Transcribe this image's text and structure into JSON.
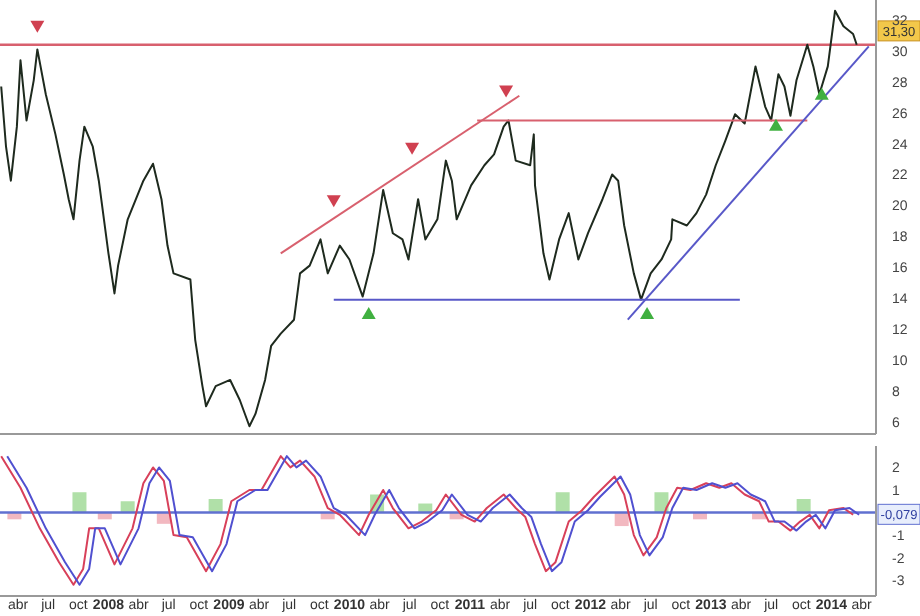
{
  "chart_data": [
    {
      "type": "line",
      "xlim": [
        2007.1,
        2014.37
      ],
      "ylim": [
        5.2,
        33.3
      ],
      "yticks": [
        6,
        8,
        10,
        12,
        14,
        16,
        18,
        20,
        22,
        24,
        26,
        28,
        30,
        32
      ],
      "tick_labels": "y",
      "series": [
        {
          "color": "#1e2a1e",
          "x": [
            2007.11,
            2007.15,
            2007.19,
            2007.24,
            2007.27,
            2007.32,
            2007.38,
            2007.41,
            2007.48,
            2007.56,
            2007.63,
            2007.67,
            2007.71,
            2007.76,
            2007.8,
            2007.87,
            2007.92,
            2008.0,
            2008.05,
            2008.08,
            2008.16,
            2008.29,
            2008.37,
            2008.44,
            2008.49,
            2008.54,
            2008.68,
            2008.72,
            2008.78,
            2008.81,
            2008.89,
            2009.01,
            2009.09,
            2009.17,
            2009.22,
            2009.3,
            2009.35,
            2009.43,
            2009.54,
            2009.59,
            2009.67,
            2009.76,
            2009.82,
            2009.92,
            2010.0,
            2010.11,
            2010.2,
            2010.28,
            2010.36,
            2010.44,
            2010.49,
            2010.57,
            2010.63,
            2010.73,
            2010.8,
            2010.85,
            2010.89,
            2011.01,
            2011.12,
            2011.2,
            2011.28,
            2011.32,
            2011.38,
            2011.5,
            2011.53,
            2011.54,
            2011.61,
            2011.66,
            2011.74,
            2011.82,
            2011.9,
            2011.98,
            2012.1,
            2012.18,
            2012.23,
            2012.28,
            2012.36,
            2012.42,
            2012.5,
            2012.59,
            2012.67,
            2012.68,
            2012.8,
            2012.88,
            2012.96,
            2013.04,
            2013.12,
            2013.2,
            2013.28,
            2013.37,
            2013.45,
            2013.5,
            2013.56,
            2013.61,
            2013.66,
            2013.71,
            2013.8,
            2013.85,
            2013.9,
            2013.97,
            2014.03,
            2014.1,
            2014.18,
            2014.21
          ],
          "values": [
            27.7,
            23.8,
            21.6,
            25.1,
            29.4,
            25.5,
            28.1,
            30.1,
            27.2,
            24.6,
            22.0,
            20.4,
            19.1,
            22.9,
            25.1,
            23.8,
            21.6,
            16.9,
            14.3,
            16.1,
            19.1,
            21.6,
            22.7,
            20.4,
            17.4,
            15.6,
            15.2,
            11.3,
            8.3,
            7.0,
            8.3,
            8.7,
            7.4,
            5.7,
            6.5,
            8.7,
            10.9,
            11.7,
            12.6,
            15.6,
            16.1,
            17.8,
            15.6,
            17.4,
            16.5,
            14.1,
            16.9,
            21.0,
            18.2,
            17.8,
            16.5,
            20.4,
            17.8,
            19.1,
            22.9,
            21.6,
            19.1,
            21.3,
            22.6,
            23.3,
            25.1,
            25.5,
            22.9,
            22.6,
            24.6,
            21.3,
            16.9,
            15.2,
            17.8,
            19.5,
            16.5,
            18.2,
            20.4,
            22.0,
            21.6,
            18.7,
            15.6,
            13.9,
            15.6,
            16.5,
            17.8,
            19.1,
            18.7,
            19.5,
            20.7,
            22.6,
            24.2,
            25.9,
            25.3,
            29.0,
            26.4,
            25.5,
            28.5,
            27.7,
            25.8,
            28.1,
            30.4,
            29.0,
            27.2,
            29.0,
            32.6,
            31.6,
            31.1,
            30.4
          ]
        },
        {
          "color": "#d8606e",
          "x": [
            2009.43,
            2011.41
          ],
          "values": [
            16.9,
            27.1
          ]
        },
        {
          "color": "#d8606e",
          "x": [
            2011.06,
            2013.8
          ],
          "values": [
            25.5,
            25.5
          ]
        },
        {
          "color": "#5858c8",
          "x": [
            2009.87,
            2013.24
          ],
          "values": [
            13.9,
            13.9
          ]
        },
        {
          "color": "#5858c8",
          "x": [
            2012.31,
            2014.31
          ],
          "values": [
            12.6,
            30.3
          ]
        },
        {
          "type": "scatter",
          "marker": "triangle_down",
          "color": "#d04050",
          "x": [
            2007.41,
            2009.87,
            2010.52,
            2011.3
          ],
          "values": [
            31.7,
            20.4,
            23.8,
            27.5
          ]
        },
        {
          "type": "scatter",
          "marker": "triangle",
          "color": "#40b040",
          "x": [
            2010.16,
            2012.47,
            2013.54,
            2013.92
          ],
          "values": [
            12.9,
            12.9,
            25.1,
            27.1
          ]
        }
      ],
      "ref_lines": [
        {
          "axis": "y",
          "value": 30.4,
          "color": "#d8606e"
        }
      ],
      "annotations": [
        {
          "text": "31,30",
          "y": 31.3
        }
      ]
    },
    {
      "type": "line",
      "xlim": [
        2007.1,
        2014.37
      ],
      "ylim": [
        -3.7,
        2.95
      ],
      "yticks": [
        -3,
        -2,
        -1,
        1,
        2
      ],
      "xticks": [
        {
          "value": 2007.25,
          "label": "abr"
        },
        {
          "value": 2007.5,
          "label": "jul"
        },
        {
          "value": 2007.75,
          "label": "oct"
        },
        2008,
        {
          "value": 2008.25,
          "label": "abr"
        },
        {
          "value": 2008.5,
          "label": "jul"
        },
        {
          "value": 2008.75,
          "label": "oct"
        },
        2009,
        {
          "value": 2009.25,
          "label": "abr"
        },
        {
          "value": 2009.5,
          "label": "jul"
        },
        {
          "value": 2009.75,
          "label": "oct"
        },
        2010,
        {
          "value": 2010.25,
          "label": "abr"
        },
        {
          "value": 2010.5,
          "label": "jul"
        },
        {
          "value": 2010.75,
          "label": "oct"
        },
        2011,
        {
          "value": 2011.25,
          "label": "abr"
        },
        {
          "value": 2011.5,
          "label": "jul"
        },
        {
          "value": 2011.75,
          "label": "oct"
        },
        2012,
        {
          "value": 2012.25,
          "label": "abr"
        },
        {
          "value": 2012.5,
          "label": "jul"
        },
        {
          "value": 2012.75,
          "label": "oct"
        },
        2013,
        {
          "value": 2013.25,
          "label": "abr"
        },
        {
          "value": 2013.5,
          "label": "jul"
        },
        {
          "value": 2013.75,
          "label": "oct"
        },
        2014,
        {
          "value": 2014.25,
          "label": "abr"
        }
      ],
      "series": [
        {
          "type": "bar",
          "x": [
            2007.22,
            2007.76,
            2007.97,
            2008.16,
            2008.46,
            2008.89,
            2009.82,
            2010.23,
            2010.63,
            2010.89,
            2011.77,
            2012.26,
            2012.59,
            2012.91,
            2013.4,
            2013.77
          ],
          "values": [
            -0.3,
            0.9,
            -0.3,
            0.5,
            -0.5,
            0.6,
            -0.3,
            0.8,
            0.4,
            -0.3,
            0.9,
            -0.6,
            0.9,
            -0.3,
            -0.3,
            0.6
          ],
          "colors": [
            "#f2b8c0",
            "#b0e0a8",
            "#f2b8c0",
            "#b0e0a8",
            "#f2b8c0",
            "#b0e0a8",
            "#f2b8c0",
            "#b0e0a8",
            "#b0e0a8",
            "#f2b8c0",
            "#b0e0a8",
            "#f2b8c0",
            "#b0e0a8",
            "#f2b8c0",
            "#f2b8c0",
            "#b0e0a8"
          ]
        },
        {
          "color": "#d8405a",
          "x": [
            2007.11,
            2007.27,
            2007.43,
            2007.59,
            2007.71,
            2007.79,
            2007.84,
            2007.92,
            2008.05,
            2008.2,
            2008.29,
            2008.37,
            2008.46,
            2008.54,
            2008.65,
            2008.81,
            2008.93,
            2009.02,
            2009.17,
            2009.27,
            2009.43,
            2009.51,
            2009.59,
            2009.71,
            2009.82,
            2009.92,
            2010.08,
            2010.16,
            2010.28,
            2010.36,
            2010.49,
            2010.6,
            2010.72,
            2010.8,
            2010.93,
            2011.04,
            2011.14,
            2011.28,
            2011.38,
            2011.46,
            2011.54,
            2011.63,
            2011.71,
            2011.82,
            2011.93,
            2012.03,
            2012.2,
            2012.28,
            2012.36,
            2012.44,
            2012.55,
            2012.63,
            2012.72,
            2012.83,
            2012.96,
            2013.07,
            2013.17,
            2013.28,
            2013.4,
            2013.48,
            2013.56,
            2013.66,
            2013.74,
            2013.82,
            2013.9,
            2013.98,
            2014.1,
            2014.18
          ],
          "values": [
            2.5,
            1.1,
            -0.7,
            -2.2,
            -3.2,
            -2.5,
            -0.7,
            -0.7,
            -2.3,
            -0.7,
            1.3,
            2.0,
            1.4,
            -1.0,
            -1.1,
            -2.6,
            -1.4,
            0.5,
            1.0,
            1.0,
            2.5,
            2.0,
            2.3,
            1.6,
            0.2,
            -0.1,
            -1.0,
            -0.1,
            1.0,
            0.2,
            -0.7,
            -0.4,
            0.1,
            0.8,
            -0.1,
            -0.4,
            0.2,
            0.8,
            0.2,
            -0.2,
            -1.4,
            -2.6,
            -2.2,
            -0.4,
            0.1,
            0.7,
            1.6,
            0.8,
            -1.0,
            -1.9,
            -1.1,
            0.2,
            1.1,
            1.0,
            1.3,
            1.1,
            1.3,
            0.8,
            0.5,
            -0.4,
            -0.4,
            -0.8,
            -0.4,
            -0.1,
            -0.7,
            0.1,
            0.2,
            -0.1
          ]
        },
        {
          "color": "#5050d0",
          "x": [
            2007.16,
            2007.32,
            2007.48,
            2007.64,
            2007.76,
            2007.84,
            2007.89,
            2007.97,
            2008.1,
            2008.25,
            2008.34,
            2008.42,
            2008.51,
            2008.59,
            2008.7,
            2008.86,
            2008.98,
            2009.07,
            2009.22,
            2009.32,
            2009.48,
            2009.56,
            2009.64,
            2009.76,
            2009.87,
            2009.97,
            2010.13,
            2010.21,
            2010.33,
            2010.41,
            2010.54,
            2010.65,
            2010.77,
            2010.85,
            2010.98,
            2011.09,
            2011.19,
            2011.33,
            2011.43,
            2011.51,
            2011.59,
            2011.68,
            2011.76,
            2011.87,
            2011.98,
            2012.08,
            2012.25,
            2012.33,
            2012.41,
            2012.49,
            2012.6,
            2012.68,
            2012.77,
            2012.88,
            2013.01,
            2013.12,
            2013.22,
            2013.33,
            2013.45,
            2013.53,
            2013.61,
            2013.71,
            2013.79,
            2013.87,
            2013.95,
            2014.03,
            2014.15,
            2014.23
          ],
          "values": [
            2.5,
            1.1,
            -0.7,
            -2.2,
            -3.2,
            -2.5,
            -0.7,
            -0.7,
            -2.3,
            -0.7,
            1.3,
            2.0,
            1.4,
            -1.0,
            -1.1,
            -2.6,
            -1.4,
            0.5,
            1.0,
            1.0,
            2.5,
            2.0,
            2.3,
            1.6,
            0.2,
            -0.1,
            -1.0,
            -0.1,
            1.0,
            0.2,
            -0.7,
            -0.4,
            0.1,
            0.8,
            -0.1,
            -0.4,
            0.2,
            0.8,
            0.2,
            -0.2,
            -1.4,
            -2.6,
            -2.2,
            -0.4,
            0.1,
            0.7,
            1.6,
            0.8,
            -1.0,
            -1.9,
            -1.1,
            0.2,
            1.1,
            1.0,
            1.3,
            1.1,
            1.3,
            0.8,
            0.5,
            -0.4,
            -0.4,
            -0.8,
            -0.4,
            -0.1,
            -0.7,
            0.1,
            0.2,
            -0.1
          ]
        }
      ],
      "ref_lines": [
        {
          "axis": "y",
          "value": 0,
          "color": "#6070d0"
        }
      ],
      "annotations": [
        {
          "text": "-0,079",
          "y": -0.079
        }
      ]
    }
  ]
}
